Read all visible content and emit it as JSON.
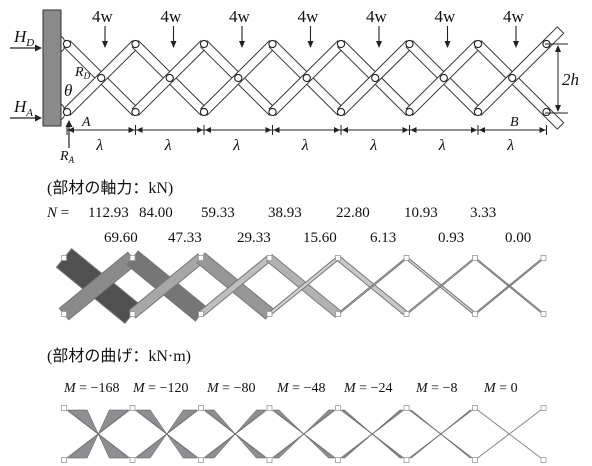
{
  "truss": {
    "load_label": "4w",
    "load_count": 7,
    "labels": {
      "hd": "H",
      "hd_sub": "D",
      "ha": "H",
      "ha_sub": "A",
      "rd": "R",
      "rd_sub": "D",
      "ra": "R",
      "ra_sub": "A",
      "theta": "θ",
      "point_a": "A",
      "point_b": "B",
      "height": "2h",
      "span": "λ"
    },
    "span_count": 7
  },
  "axial": {
    "caption": "(部材の軸力：kN)",
    "row1_label": "N =",
    "row1": [
      "112.93",
      "84.00",
      "59.33",
      "38.93",
      "22.80",
      "10.93",
      "3.33"
    ],
    "row2": [
      "69.60",
      "47.33",
      "29.33",
      "15.60",
      "6.13",
      "0.93",
      "0.00"
    ]
  },
  "bending": {
    "caption": "(部材の曲げ：kN·m)",
    "symbol": "M",
    "values": [
      "−168",
      "−120",
      "−80",
      "−48",
      "−24",
      "−8",
      "0"
    ],
    "magnitudes": [
      168,
      120,
      80,
      48,
      24,
      8,
      0
    ]
  },
  "colors": {
    "wall": "#8a8a8a",
    "member": "#555555",
    "axial_dark": "#6a6a6a",
    "axial_light": "#b8b8b8",
    "moment_fill": "#7a7a80",
    "node": "#aaaaaa"
  }
}
